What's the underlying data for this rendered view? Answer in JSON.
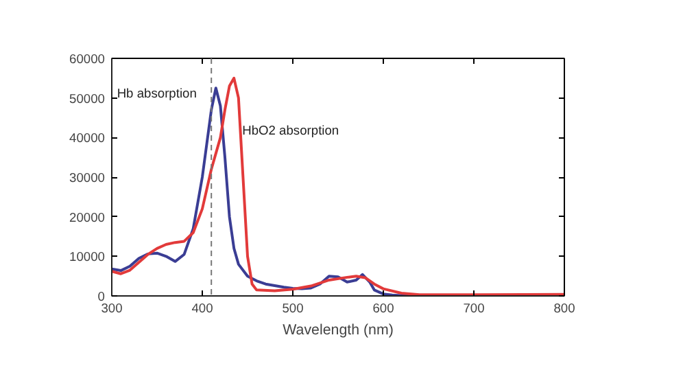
{
  "chart_data": {
    "type": "line",
    "xlabel": "Wavelength (nm)",
    "xlim": [
      300,
      800
    ],
    "xticks": [
      300,
      400,
      500,
      600,
      700,
      800
    ],
    "ylim": [
      0,
      60000
    ],
    "yticks": [
      0,
      10000,
      20000,
      30000,
      40000,
      50000,
      60000
    ],
    "grid": false,
    "marker": "none",
    "line_style": "solid",
    "ref_lines": [
      {
        "axis": "x",
        "value": 410,
        "color": "#777777",
        "line_style": "dashed"
      }
    ],
    "series": [
      {
        "name": "Hb absorption",
        "color": "#3a3d94",
        "x": [
          300,
          310,
          320,
          330,
          340,
          350,
          360,
          370,
          380,
          390,
          400,
          410,
          415,
          420,
          425,
          430,
          435,
          440,
          450,
          460,
          470,
          480,
          490,
          500,
          510,
          520,
          530,
          540,
          550,
          560,
          570,
          577,
          585,
          590,
          600,
          610,
          620,
          635
        ],
        "values": [
          6800,
          6400,
          7500,
          9500,
          10600,
          10800,
          10000,
          8700,
          10500,
          17000,
          30000,
          47000,
          52500,
          48000,
          35000,
          20000,
          12000,
          8000,
          5000,
          3800,
          3000,
          2600,
          2200,
          1900,
          1800,
          2000,
          3000,
          5000,
          4800,
          3500,
          4000,
          5400,
          3500,
          1500,
          500,
          200,
          100,
          0
        ]
      },
      {
        "name": "HbO2 absorption",
        "color": "#e23a3a",
        "x": [
          300,
          310,
          320,
          330,
          340,
          350,
          360,
          370,
          380,
          390,
          400,
          410,
          420,
          425,
          430,
          435,
          440,
          445,
          450,
          455,
          460,
          480,
          500,
          520,
          540,
          560,
          570,
          580,
          590,
          600,
          620,
          640,
          700,
          800
        ],
        "values": [
          6200,
          5600,
          6500,
          8500,
          10500,
          12000,
          13000,
          13500,
          13800,
          16000,
          22000,
          32000,
          40000,
          47000,
          53000,
          55000,
          50000,
          30000,
          10000,
          3000,
          1500,
          1300,
          1700,
          2500,
          4000,
          4700,
          5000,
          4600,
          3000,
          1800,
          700,
          300,
          300,
          400
        ]
      }
    ]
  }
}
